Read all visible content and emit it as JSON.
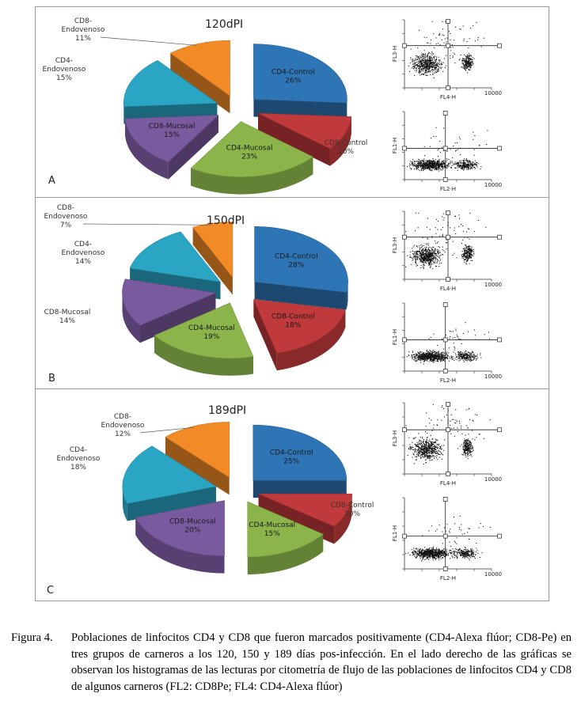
{
  "figure": {
    "panels": [
      {
        "letter": "A",
        "title": "120dPI",
        "histograms": [
          {
            "y_label": "FL3-H",
            "x_label": "FL4-H",
            "x_max_label": "10000"
          },
          {
            "y_label": "FL1-H",
            "x_label": "FL2-H",
            "x_max_label": "10000"
          }
        ]
      },
      {
        "letter": "B",
        "title": "150dPI",
        "histograms": [
          {
            "y_label": "FL3-H",
            "x_label": "FL4-H",
            "x_max_label": "10000"
          },
          {
            "y_label": "FL1-H",
            "x_label": "FL2-H",
            "x_max_label": "10000"
          }
        ]
      },
      {
        "letter": "C",
        "title": "189dPI",
        "histograms": [
          {
            "y_label": "FL3-H",
            "x_label": "FL4-H",
            "x_max_label": "10000"
          },
          {
            "y_label": "FL1-H",
            "x_label": "FL2-H",
            "x_max_label": "10000"
          }
        ]
      }
    ],
    "colors": {
      "CD4-Control": "#2e75b6",
      "CD8-Control": "#c0393b",
      "CD4-Mucosal": "#8bb44a",
      "CD8-Mucosal": "#7a5a9e",
      "CD4-Endovenoso": "#2aa5c4",
      "CD8-Endovenoso": "#f28a26"
    }
  },
  "chart_data": [
    {
      "type": "pie",
      "title": "120dPI",
      "categories": [
        "CD4-Control",
        "CD8-Control",
        "CD4-Mucosal",
        "CD8-Mucosal",
        "CD4-Endovenoso",
        "CD8-Endovenoso"
      ],
      "values": [
        26,
        10,
        23,
        15,
        15,
        11
      ],
      "value_labels": [
        "26%",
        "10%",
        "23%",
        "15%",
        "15%",
        "11%"
      ]
    },
    {
      "type": "pie",
      "title": "150dPI",
      "categories": [
        "CD4-Control",
        "CD8-Control",
        "CD4-Mucosal",
        "CD8-Mucosal",
        "CD4-Endovenoso",
        "CD8-Endovenoso"
      ],
      "values": [
        28,
        18,
        19,
        14,
        14,
        7
      ],
      "value_labels": [
        "28%",
        "18%",
        "19%",
        "14%",
        "14%",
        "7%"
      ]
    },
    {
      "type": "pie",
      "title": "189dPI",
      "categories": [
        "CD4-Control",
        "CD8-Control",
        "CD4-Mucosal",
        "CD8-Mucosal",
        "CD4-Endovenoso",
        "CD8-Endovenoso"
      ],
      "values": [
        25,
        10,
        15,
        20,
        18,
        12
      ],
      "value_labels": [
        "25%",
        "10%",
        "15%",
        "20%",
        "18%",
        "12%"
      ]
    }
  ],
  "caption": {
    "label": "Figura 4.",
    "text": "Poblaciones de linfocitos CD4 y CD8 que fueron marcados positivamente (CD4-Alexa flúor; CD8-Pe) en tres grupos de carneros a los 120, 150 y 189 días pos-infección. En el lado derecho de las gráficas se observan los histogramas de las lecturas por citometría de flujo de las poblaciones de linfocitos CD4 y CD8 de algunos carneros (FL2: CD8Pe; FL4: CD4-Alexa flúor)"
  }
}
